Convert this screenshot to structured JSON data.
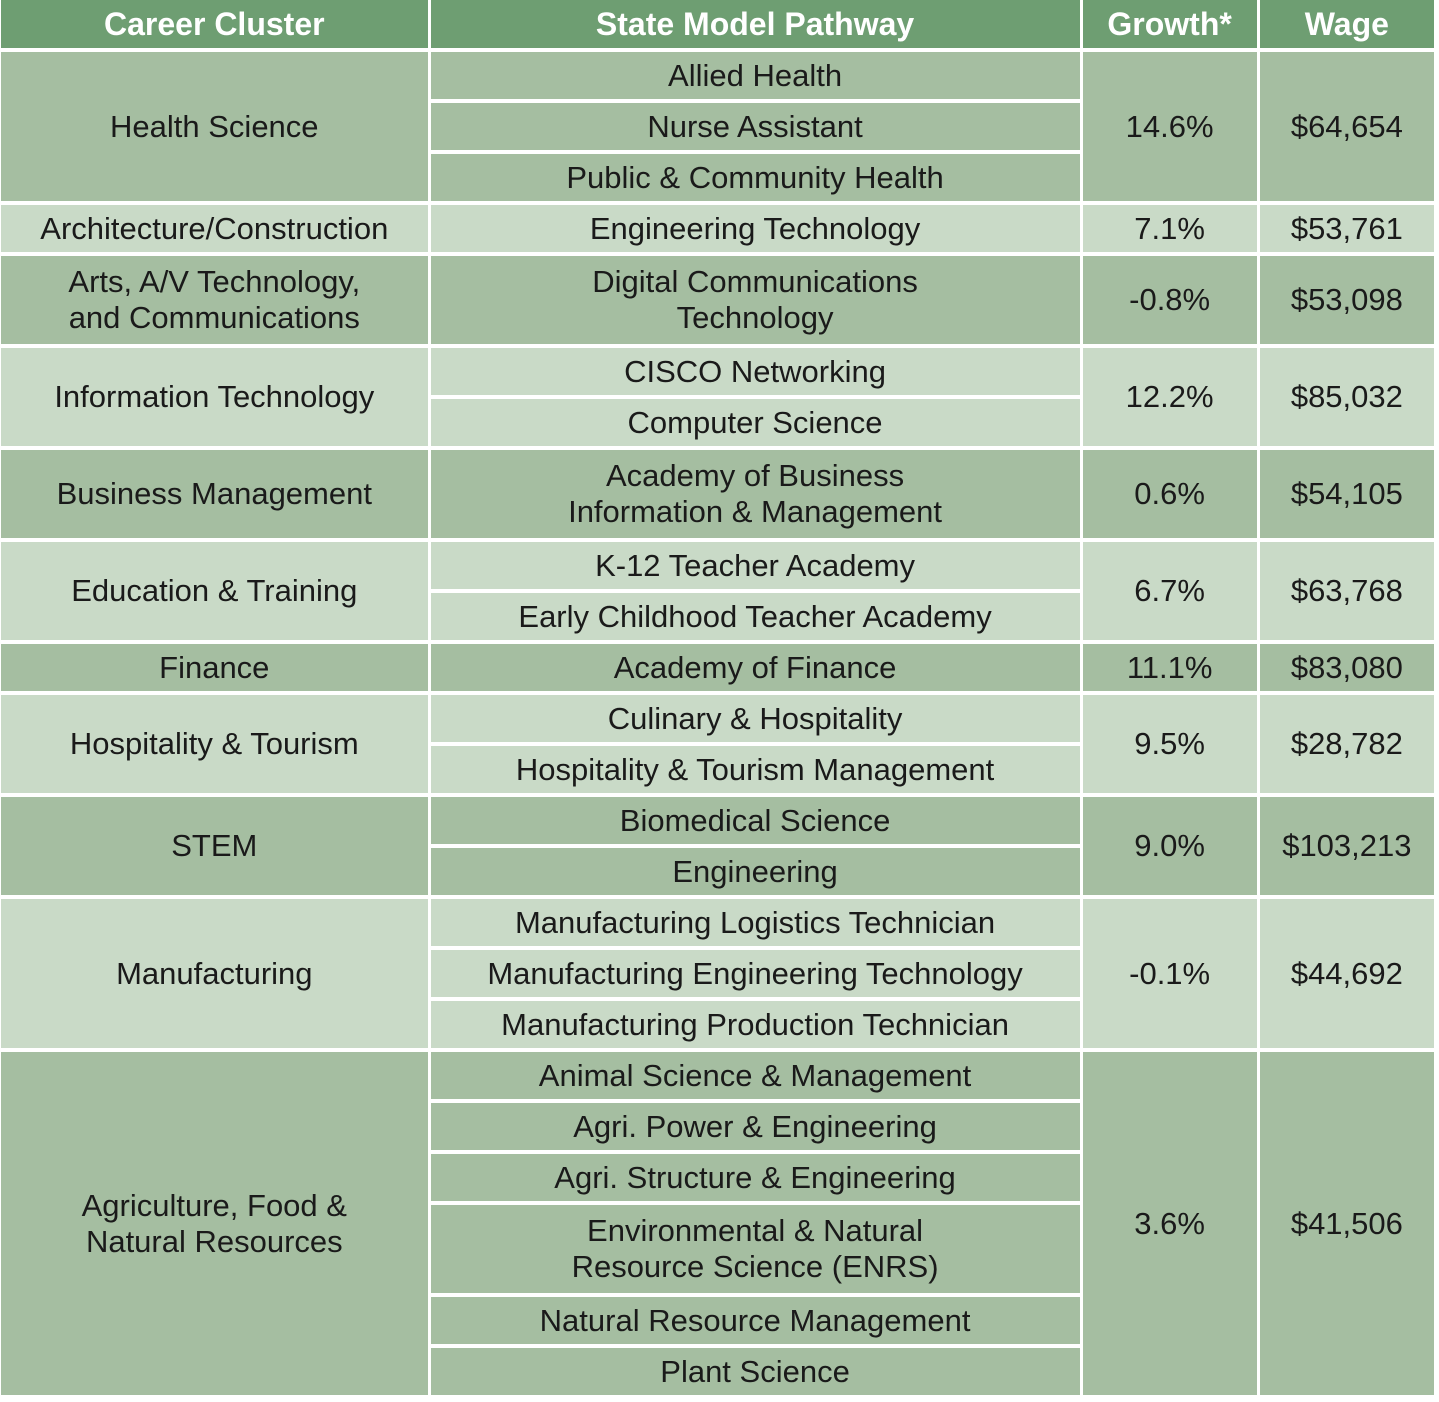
{
  "table": {
    "header": [
      "Career Cluster",
      "State Model Pathway",
      "Growth*",
      "Wage"
    ],
    "groups": [
      {
        "cluster": "Health Science",
        "pathways": [
          "Allied Health",
          "Nurse Assistant",
          "Public & Community Health"
        ],
        "growth": "14.6%",
        "wage": "$64,654"
      },
      {
        "cluster": "Architecture/Construction",
        "pathways": [
          "Engineering Technology"
        ],
        "growth": "7.1%",
        "wage": "$53,761"
      },
      {
        "cluster": "Arts, A/V Technology,\nand Communications",
        "pathways": [
          "Digital Communications\nTechnology"
        ],
        "growth": "-0.8%",
        "wage": "$53,098"
      },
      {
        "cluster": "Information Technology",
        "pathways": [
          "CISCO Networking",
          "Computer Science"
        ],
        "growth": "12.2%",
        "wage": "$85,032"
      },
      {
        "cluster": "Business Management",
        "pathways": [
          "Academy of Business\nInformation & Management"
        ],
        "growth": "0.6%",
        "wage": "$54,105"
      },
      {
        "cluster": "Education & Training",
        "pathways": [
          "K-12 Teacher Academy",
          "Early Childhood Teacher Academy"
        ],
        "growth": "6.7%",
        "wage": "$63,768"
      },
      {
        "cluster": "Finance",
        "pathways": [
          "Academy of Finance"
        ],
        "growth": "11.1%",
        "wage": "$83,080"
      },
      {
        "cluster": "Hospitality & Tourism",
        "pathways": [
          "Culinary & Hospitality",
          "Hospitality & Tourism Management"
        ],
        "growth": "9.5%",
        "wage": "$28,782"
      },
      {
        "cluster": "STEM",
        "pathways": [
          "Biomedical Science",
          "Engineering"
        ],
        "growth": "9.0%",
        "wage": "$103,213"
      },
      {
        "cluster": "Manufacturing",
        "pathways": [
          "Manufacturing Logistics Technician",
          "Manufacturing Engineering Technology",
          "Manufacturing Production Technician"
        ],
        "growth": "-0.1%",
        "wage": "$44,692"
      },
      {
        "cluster": "Agriculture, Food &\nNatural Resources",
        "pathways": [
          "Animal Science & Management",
          "Agri. Power & Engineering",
          "Agri. Structure & Engineering",
          "Environmental & Natural\nResource Science (ENRS)",
          "Natural Resource Management",
          "Plant Science"
        ],
        "growth": "3.6%",
        "wage": "$41,506"
      }
    ]
  }
}
